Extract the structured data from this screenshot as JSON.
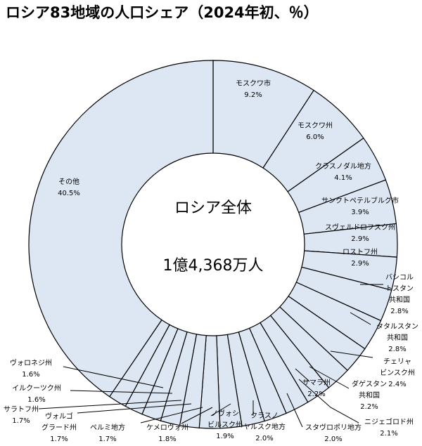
{
  "title": "ロシア83地域の人口シェア（2024年初、％）",
  "chart_data": {
    "type": "pie",
    "title": "ロシア83地域の人口シェア（2024年初、％）",
    "center_label": [
      "ロシア全体",
      "1億4,368万人"
    ],
    "slices": [
      {
        "label": [
          "モスクワ市"
        ],
        "value_label": "9.2%",
        "value": 9.2
      },
      {
        "label": [
          "モスクワ州"
        ],
        "value_label": "6.0%",
        "value": 6.0
      },
      {
        "label": [
          "クラスノダル地方"
        ],
        "value_label": "4.1%",
        "value": 4.1
      },
      {
        "label": [
          "サンクトペテルブルグ市"
        ],
        "value_label": "3.9%",
        "value": 3.9
      },
      {
        "label": [
          "スヴェルドロフスク州"
        ],
        "value_label": "2.9%",
        "value": 2.9
      },
      {
        "label": [
          "ロストフ州"
        ],
        "value_label": "2.9%",
        "value": 2.9
      },
      {
        "label": [
          "バシコル",
          "トスタン",
          "共和国"
        ],
        "value_label": "2.8%",
        "value": 2.8
      },
      {
        "label": [
          "タタルスタン",
          "共和国"
        ],
        "value_label": "2.8%",
        "value": 2.8
      },
      {
        "label": [
          "チェリャ",
          "ビンスク州"
        ],
        "value_label": "2.4%",
        "value": 2.4
      },
      {
        "label": [
          "ダゲスタン",
          "共和国"
        ],
        "value_label": "2.2%",
        "value": 2.2
      },
      {
        "label": [
          "ニジェゴロド州"
        ],
        "value_label": "2.1%",
        "value": 2.1
      },
      {
        "label": [
          "スタヴロポリ地方"
        ],
        "value_label": "2.0%",
        "value": 2.0
      },
      {
        "label": [
          "クラスノ",
          "ヤルスク地方"
        ],
        "value_label": "2.0%",
        "value": 2.0
      },
      {
        "label": [
          "ノヴォシ",
          "ビルスク州"
        ],
        "value_label": "1.9%",
        "value": 1.9
      },
      {
        "label": [
          "ケメロヴォ州"
        ],
        "value_label": "1.8%",
        "value": 1.8
      },
      {
        "label": [
          "ペルミ地方"
        ],
        "value_label": "1.7%",
        "value": 1.7
      },
      {
        "label": [
          "ヴォルゴ",
          "グラード州"
        ],
        "value_label": "1.7%",
        "value": 1.7
      },
      {
        "label": [
          "サラトフ州"
        ],
        "value_label": "1.7%",
        "value": 1.7
      },
      {
        "label": [
          "イルクーツク州"
        ],
        "value_label": "1.6%",
        "value": 1.6
      },
      {
        "label": [
          "ヴォロネジ州"
        ],
        "value_label": "1.6%",
        "value": 1.6
      },
      {
        "label": [
          "サマラ州"
        ],
        "value_label": "2.2%",
        "value": 2.2
      },
      {
        "label": [
          "その他"
        ],
        "value_label": "40.5%",
        "value": 40.5
      }
    ],
    "colors": {
      "slice_fill": "#dde6f3",
      "slice_stroke": "#000000"
    }
  }
}
